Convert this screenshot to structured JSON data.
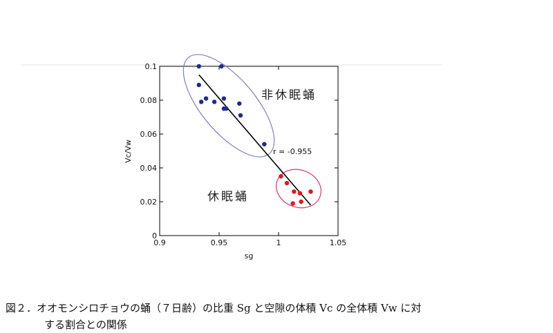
{
  "chart_data": {
    "type": "scatter",
    "xlabel": "sg",
    "ylabel": "Vc/Vw",
    "xlim": [
      0.9,
      1.05
    ],
    "ylim": [
      0,
      0.1
    ],
    "xticks": [
      "0.9",
      "0.95",
      "1",
      "1.05"
    ],
    "yticks": [
      "0",
      "0.02",
      "0.04",
      "0.06",
      "0.08",
      "0.1"
    ],
    "grid": false,
    "series": [
      {
        "name": "非休眠蛹",
        "color": "#1f2a8c",
        "points": [
          [
            0.933,
            0.1
          ],
          [
            0.952,
            0.1
          ],
          [
            0.933,
            0.089
          ],
          [
            0.935,
            0.079
          ],
          [
            0.939,
            0.081
          ],
          [
            0.946,
            0.079
          ],
          [
            0.954,
            0.081
          ],
          [
            0.956,
            0.075
          ],
          [
            0.954,
            0.075
          ],
          [
            0.967,
            0.078
          ],
          [
            0.968,
            0.071
          ],
          [
            0.988,
            0.054
          ]
        ]
      },
      {
        "name": "休眠蛹",
        "color": "#e8141c",
        "points": [
          [
            1.002,
            0.035
          ],
          [
            1.007,
            0.031
          ],
          [
            1.013,
            0.026
          ],
          [
            1.018,
            0.025
          ],
          [
            1.027,
            0.026
          ],
          [
            1.012,
            0.019
          ],
          [
            1.019,
            0.02
          ]
        ]
      }
    ],
    "regression": {
      "x": [
        0.933,
        1.027
      ],
      "y": [
        0.095,
        0.018
      ],
      "color": "#000000"
    },
    "ellipse_colors": {
      "nondiapause": "#7b7fc4",
      "diapause": "#e0336b"
    },
    "annotations": {
      "correlation": "r = -0.955"
    }
  },
  "caption": {
    "line1": "図２．オオモンシロチョウの蛹（７日齢）の比重 Sg と空隙の体積 Vc の全体積 Vw に対",
    "line2": "する割合との関係"
  }
}
